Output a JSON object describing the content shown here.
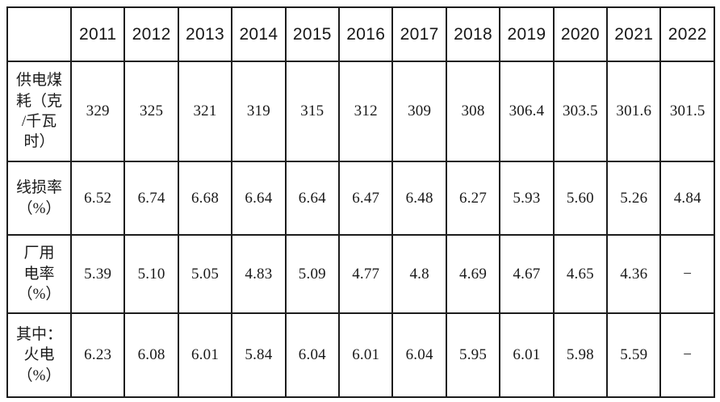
{
  "colors": {
    "background": "#ffffff",
    "border": "#1c1c1c",
    "text": "#1a1a1a"
  },
  "table": {
    "corner_label": "",
    "years": [
      "2011",
      "2012",
      "2013",
      "2014",
      "2015",
      "2016",
      "2017",
      "2018",
      "2019",
      "2020",
      "2021",
      "2022"
    ],
    "rows": [
      {
        "label": "供电煤耗（克/千瓦时）",
        "label_lines": "供电煤\n耗（克\n/千瓦\n时）",
        "values": [
          "329",
          "325",
          "321",
          "319",
          "315",
          "312",
          "309",
          "308",
          "306.4",
          "303.5",
          "301.6",
          "301.5"
        ]
      },
      {
        "label": "线损率（%）",
        "label_lines": "线损率\n（%）",
        "values": [
          "6.52",
          "6.74",
          "6.68",
          "6.64",
          "6.64",
          "6.47",
          "6.48",
          "6.27",
          "5.93",
          "5.60",
          "5.26",
          "4.84"
        ]
      },
      {
        "label": "厂用电率（%）",
        "label_lines": "厂用\n电率\n（%）",
        "values": [
          "5.39",
          "5.10",
          "5.05",
          "4.83",
          "5.09",
          "4.77",
          "4.8",
          "4.69",
          "4.67",
          "4.65",
          "4.36",
          "−"
        ]
      },
      {
        "label": "其中：火电（%）",
        "label_lines": "其中：\n火电\n（%）",
        "values": [
          "6.23",
          "6.08",
          "6.01",
          "5.84",
          "6.04",
          "6.01",
          "6.04",
          "5.95",
          "6.01",
          "5.98",
          "5.59",
          "−"
        ]
      }
    ]
  },
  "chart_data": {
    "type": "table",
    "title": "",
    "categories": [
      "2011",
      "2012",
      "2013",
      "2014",
      "2015",
      "2016",
      "2017",
      "2018",
      "2019",
      "2020",
      "2021",
      "2022"
    ],
    "series": [
      {
        "name": "供电煤耗（克/千瓦时）",
        "values": [
          329,
          325,
          321,
          319,
          315,
          312,
          309,
          308,
          306.4,
          303.5,
          301.6,
          301.5
        ]
      },
      {
        "name": "线损率（%）",
        "values": [
          6.52,
          6.74,
          6.68,
          6.64,
          6.64,
          6.47,
          6.48,
          6.27,
          5.93,
          5.6,
          5.26,
          4.84
        ]
      },
      {
        "name": "厂用电率（%）",
        "values": [
          5.39,
          5.1,
          5.05,
          4.83,
          5.09,
          4.77,
          4.8,
          4.69,
          4.67,
          4.65,
          4.36,
          null
        ]
      },
      {
        "name": "其中：火电（%）",
        "values": [
          6.23,
          6.08,
          6.01,
          5.84,
          6.04,
          6.01,
          6.04,
          5.95,
          6.01,
          5.98,
          5.59,
          null
        ]
      }
    ]
  }
}
